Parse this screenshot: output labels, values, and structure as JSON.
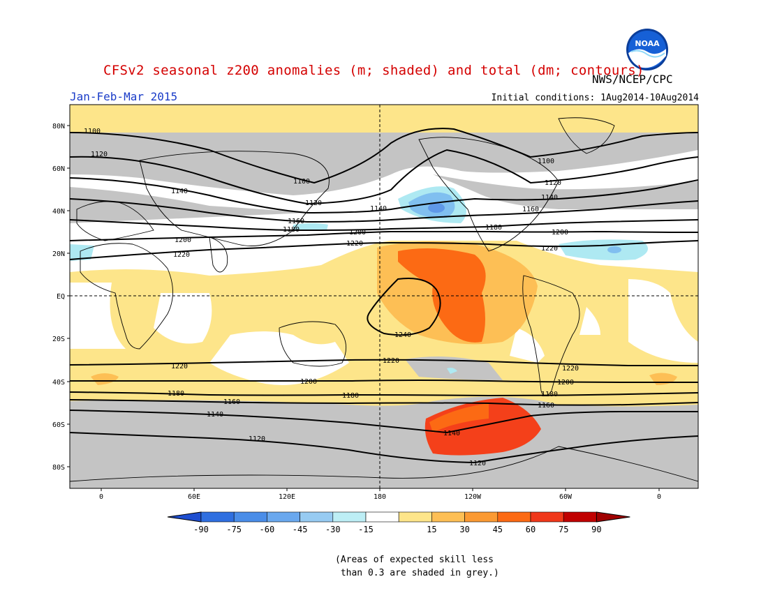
{
  "header": {
    "title": "CFSv2 seasonal z200 anomalies (m; shaded) and total (dm; contours)",
    "agency": "NWS/NCEP/CPC",
    "period": "Jan-Feb-Mar 2015",
    "initial_conditions": "Initial conditions: 1Aug2014-10Aug2014",
    "logo_text": "NOAA"
  },
  "map": {
    "lat_labels": [
      "80N",
      "60N",
      "40N",
      "20N",
      "EQ",
      "20S",
      "40S",
      "60S",
      "80S"
    ],
    "lon_labels": [
      "0",
      "60E",
      "120E",
      "180",
      "120W",
      "60W",
      "0"
    ],
    "contour_labels": [
      "1100",
      "1120",
      "1140",
      "1160",
      "1180",
      "1200",
      "1220",
      "1240"
    ],
    "colors": {
      "grey_low_skill": "#c4c4c4",
      "light_blue": "#aee9f2",
      "blue": "#80bff0",
      "yellow": "#fde58a",
      "light_orange": "#fdbf55",
      "orange": "#fc6a14",
      "red_orange": "#f4401a",
      "land_outline": "#000000"
    }
  },
  "colorbar": {
    "labels": [
      "-90",
      "-75",
      "-60",
      "-45",
      "-30",
      "-15",
      "15",
      "30",
      "45",
      "60",
      "75",
      "90"
    ],
    "colors": [
      "#1e4ed0",
      "#2f6fe0",
      "#4a8de8",
      "#6aa8ee",
      "#97cbf2",
      "#bdeef5",
      "#ffffff",
      "#fde58a",
      "#fdbf55",
      "#fb9a33",
      "#fc6a14",
      "#f0381a",
      "#c00000",
      "#a00000"
    ]
  },
  "note": "(Areas of expected skill less\n than 0.3 are shaded in grey.)"
}
